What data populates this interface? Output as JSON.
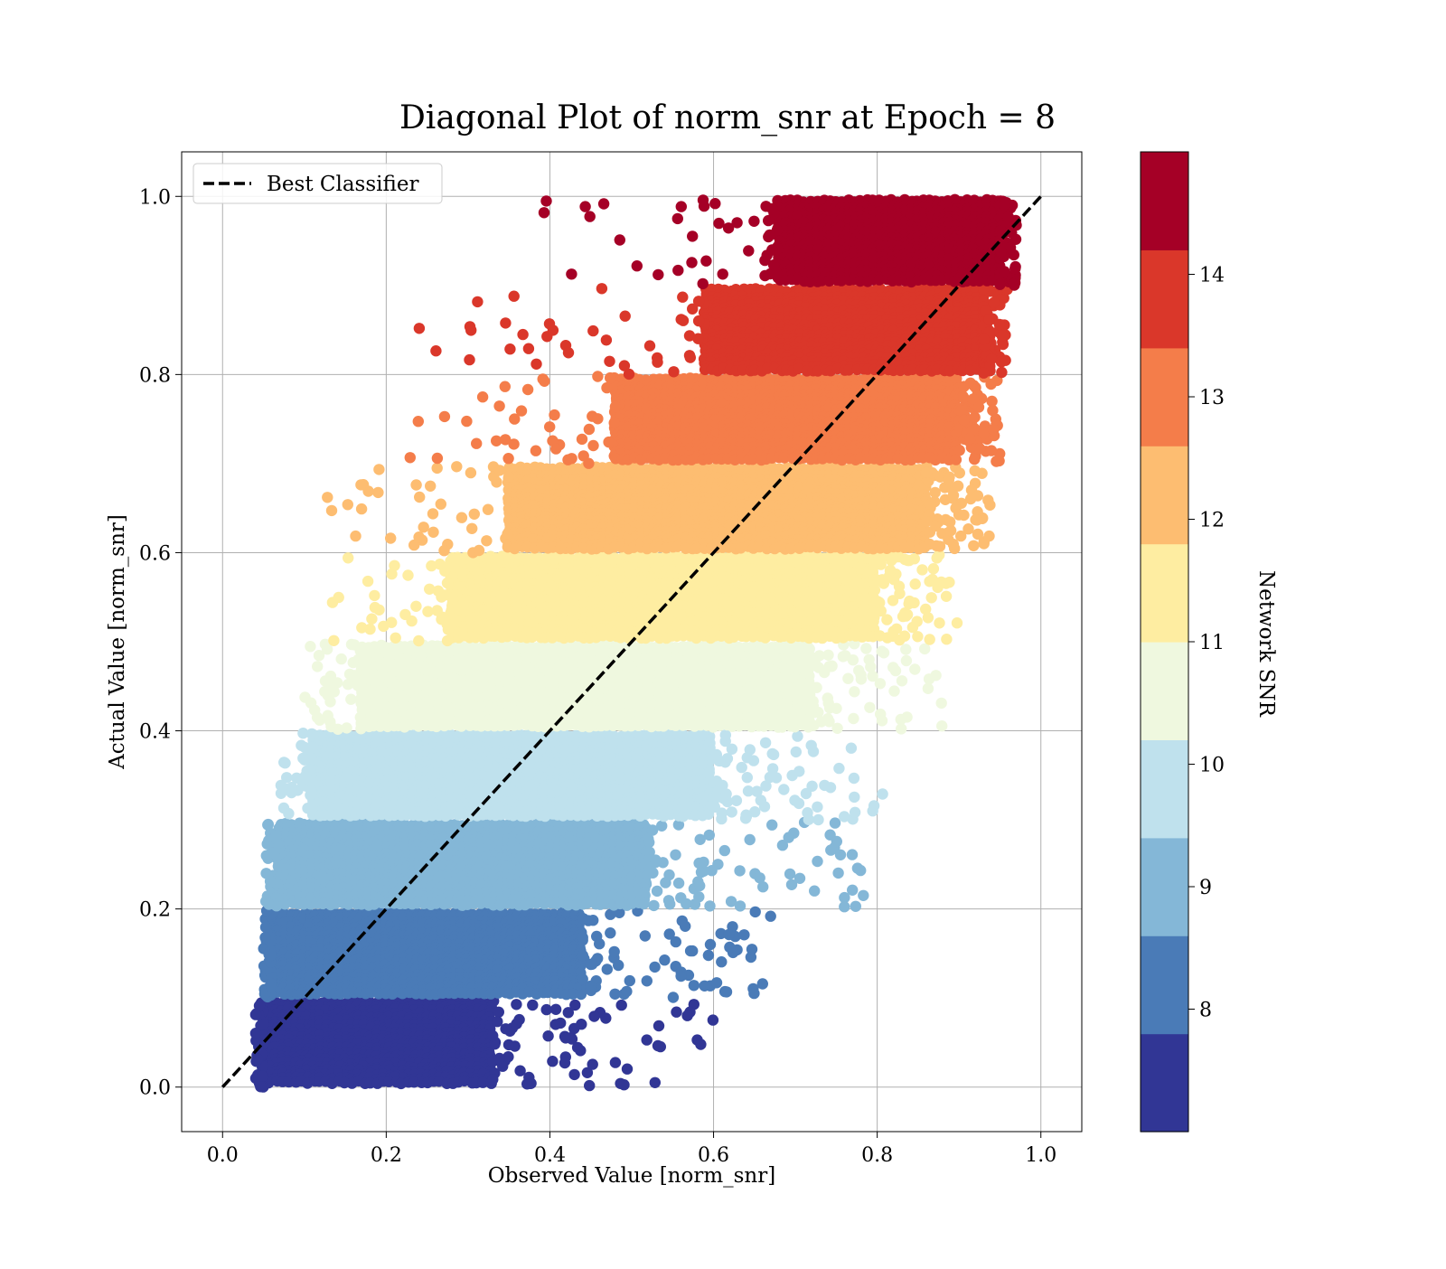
{
  "chart_data": {
    "type": "scatter",
    "title": "Diagonal Plot of norm_snr at Epoch = 8",
    "xlabel": "Observed Value [norm_snr]",
    "ylabel": "Actual Value [norm_snr]",
    "xlim": [
      -0.05,
      1.05
    ],
    "ylim": [
      -0.05,
      1.05
    ],
    "x_ticks": [
      0.0,
      0.2,
      0.4,
      0.6,
      0.8,
      1.0
    ],
    "y_ticks": [
      0.0,
      0.2,
      0.4,
      0.6,
      0.8,
      1.0
    ],
    "x_tick_labels": [
      "0.0",
      "0.2",
      "0.4",
      "0.6",
      "0.8",
      "1.0"
    ],
    "y_tick_labels": [
      "0.0",
      "0.2",
      "0.4",
      "0.6",
      "0.8",
      "1.0"
    ],
    "grid": true,
    "legend": {
      "position": "top-left",
      "entries": [
        {
          "label": "Best Classifier",
          "style": "dashed",
          "color": "#000000"
        }
      ]
    },
    "reference_line": {
      "name": "Best Classifier",
      "x": [
        0.0,
        1.0
      ],
      "y": [
        0.0,
        1.0
      ],
      "style": "dashed",
      "color": "#000000"
    },
    "colorbar": {
      "label": "Network SNR",
      "range": [
        7,
        15
      ],
      "ticks": [
        8,
        9,
        10,
        11,
        12,
        13,
        14
      ],
      "tick_labels": [
        "8",
        "9",
        "10",
        "11",
        "12",
        "13",
        "14"
      ],
      "colors": [
        "#313695",
        "#4a7bb7",
        "#84b7d7",
        "#bfe1ed",
        "#eff8df",
        "#feeda1",
        "#fdbd71",
        "#f47d4a",
        "#da372a",
        "#a50026"
      ]
    },
    "bands": [
      {
        "y_range": [
          0.0,
          0.1
        ],
        "color": "#313695",
        "x_core": [
          0.05,
          0.33
        ],
        "x_spread": [
          0.04,
          0.61
        ],
        "density": 3
      },
      {
        "y_range": [
          0.1,
          0.2
        ],
        "color": "#4a7bb7",
        "x_core": [
          0.06,
          0.44
        ],
        "x_spread": [
          0.05,
          0.67
        ],
        "density": 3
      },
      {
        "y_range": [
          0.2,
          0.3
        ],
        "color": "#84b7d7",
        "x_core": [
          0.07,
          0.52
        ],
        "x_spread": [
          0.05,
          0.79
        ],
        "density": 3
      },
      {
        "y_range": [
          0.3,
          0.4
        ],
        "color": "#bfe1ed",
        "x_core": [
          0.11,
          0.6
        ],
        "x_spread": [
          0.07,
          0.81
        ],
        "density": 3
      },
      {
        "y_range": [
          0.4,
          0.5
        ],
        "color": "#eff8df",
        "x_core": [
          0.17,
          0.72
        ],
        "x_spread": [
          0.1,
          0.88
        ],
        "density": 3
      },
      {
        "y_range": [
          0.5,
          0.6
        ],
        "color": "#feeda1",
        "x_core": [
          0.28,
          0.8
        ],
        "x_spread": [
          0.12,
          0.9
        ],
        "density": 3
      },
      {
        "y_range": [
          0.6,
          0.7
        ],
        "color": "#fdbd71",
        "x_core": [
          0.35,
          0.86
        ],
        "x_spread": [
          0.12,
          0.94
        ],
        "density": 3
      },
      {
        "y_range": [
          0.7,
          0.8
        ],
        "color": "#f47d4a",
        "x_core": [
          0.48,
          0.9
        ],
        "x_spread": [
          0.22,
          0.95
        ],
        "density": 3
      },
      {
        "y_range": [
          0.8,
          0.9
        ],
        "color": "#da372a",
        "x_core": [
          0.59,
          0.93
        ],
        "x_spread": [
          0.24,
          0.96
        ],
        "density": 3
      },
      {
        "y_range": [
          0.9,
          1.0
        ],
        "color": "#a50026",
        "x_core": [
          0.68,
          0.95
        ],
        "x_spread": [
          0.39,
          0.97
        ],
        "density": 3
      }
    ]
  }
}
